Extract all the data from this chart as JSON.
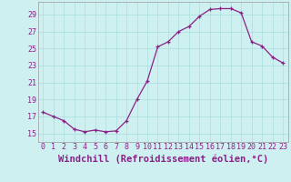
{
  "x": [
    0,
    1,
    2,
    3,
    4,
    5,
    6,
    7,
    8,
    9,
    10,
    11,
    12,
    13,
    14,
    15,
    16,
    17,
    18,
    19,
    20,
    21,
    22,
    23
  ],
  "y": [
    17.5,
    17.0,
    16.5,
    15.5,
    15.2,
    15.4,
    15.2,
    15.3,
    16.5,
    19.0,
    21.2,
    25.2,
    25.8,
    27.0,
    27.6,
    28.8,
    29.6,
    29.7,
    29.7,
    29.2,
    25.8,
    25.3,
    24.0,
    23.3
  ],
  "line_color": "#882288",
  "marker": "+",
  "bg_color": "#cff0f0",
  "grid_color": "#aadddd",
  "xlabel": "Windchill (Refroidissement éolien,°C)",
  "ylim": [
    14.0,
    30.5
  ],
  "yticks": [
    15,
    17,
    19,
    21,
    23,
    25,
    27,
    29
  ],
  "xlim": [
    -0.5,
    23.5
  ],
  "xticks": [
    0,
    1,
    2,
    3,
    4,
    5,
    6,
    7,
    8,
    9,
    10,
    11,
    12,
    13,
    14,
    15,
    16,
    17,
    18,
    19,
    20,
    21,
    22,
    23
  ],
  "font_color": "#882288",
  "tick_fontsize": 6,
  "xlabel_fontsize": 7.5
}
